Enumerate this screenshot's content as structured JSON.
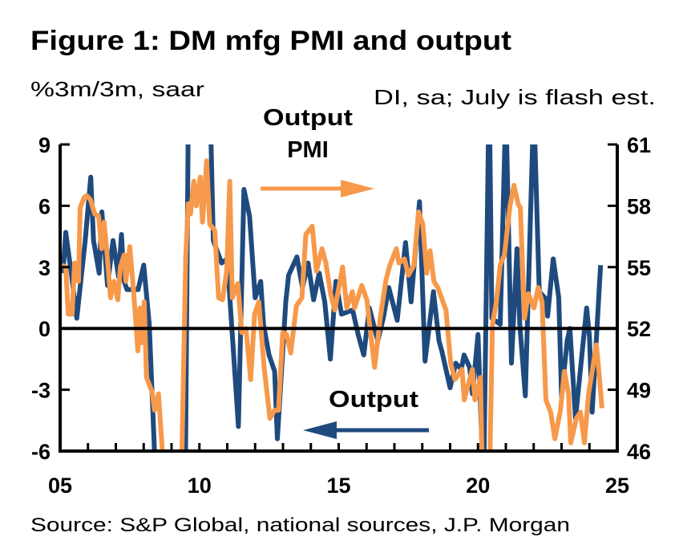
{
  "chart_data": {
    "type": "line",
    "title": "Figure 1: DM mfg PMI and output",
    "left_axis_label": "%3m/3m, saar",
    "right_axis_label": "DI, sa; July is flash est.",
    "source": "Source: S&P Global, national sources, J.P. Morgan",
    "x_ticks": [
      "05",
      "10",
      "15",
      "20",
      "25"
    ],
    "x_tick_years": [
      2005,
      2010,
      2015,
      2020,
      2025
    ],
    "xlim": [
      2005,
      2025
    ],
    "y_left": {
      "ticks": [
        9,
        6,
        3,
        0,
        -3,
        -6
      ],
      "lim": [
        -6,
        9
      ]
    },
    "y_right": {
      "ticks": [
        61,
        58,
        55,
        52,
        49,
        46
      ],
      "lim": [
        46,
        61
      ]
    },
    "grid": false,
    "annotations": {
      "pmi_line1": "Output",
      "pmi_line2": "PMI",
      "output": "Output"
    },
    "colors": {
      "output": "#1f4a7e",
      "pmi": "#f7994a"
    },
    "series": [
      {
        "name": "Output",
        "axis": "left",
        "x": [
          2005.1,
          2005.2,
          2005.4,
          2005.6,
          2005.9,
          2006.1,
          2006.2,
          2006.4,
          2006.5,
          2006.7,
          2006.9,
          2007.1,
          2007.2,
          2007.3,
          2007.4,
          2007.8,
          2008.0,
          2008.2,
          2008.4,
          2008.6,
          2009.0,
          2009.5,
          2009.6,
          2009.8,
          2010.0,
          2010.2,
          2010.4,
          2010.5,
          2010.8,
          2011.0,
          2011.4,
          2011.6,
          2011.8,
          2012.0,
          2012.2,
          2012.3,
          2012.5,
          2012.7,
          2012.8,
          2013.1,
          2013.2,
          2013.5,
          2013.7,
          2013.9,
          2014.1,
          2014.3,
          2014.5,
          2014.7,
          2014.9,
          2015.1,
          2015.5,
          2015.7,
          2015.9,
          2016.1,
          2016.4,
          2016.6,
          2016.8,
          2017.1,
          2017.4,
          2017.6,
          2017.9,
          2018.1,
          2018.4,
          2018.6,
          2018.7,
          2019.0,
          2019.2,
          2019.4,
          2019.5,
          2019.7,
          2019.8,
          2020.0,
          2020.2,
          2020.4,
          2020.5,
          2020.8,
          2021.0,
          2021.2,
          2021.4,
          2021.5,
          2021.7,
          2022.0,
          2022.2,
          2022.4,
          2022.5,
          2022.7,
          2022.9,
          2023.0,
          2023.2,
          2023.3,
          2023.5,
          2023.9,
          2024.0,
          2024.1,
          2024.4
        ],
        "values": [
          2.7,
          4.7,
          2.7,
          0.5,
          4.3,
          7.4,
          4.3,
          2.7,
          5.7,
          2.1,
          4.3,
          2.5,
          4.6,
          2.3,
          1.9,
          1.9,
          3.1,
          0.2,
          -6.5,
          -9,
          -12,
          -6.5,
          10,
          9.2,
          11,
          9.3,
          10,
          4.3,
          3.2,
          3.4,
          -4.8,
          6.8,
          5.5,
          1.5,
          2.3,
          0.2,
          -1.3,
          -2.1,
          -5.4,
          1.3,
          2.6,
          3.5,
          2.0,
          3.2,
          1.4,
          2.7,
          1.3,
          -1.5,
          2.3,
          0.7,
          0.9,
          -0.3,
          -1.3,
          1.0,
          -0.6,
          0.5,
          2.0,
          0.4,
          4.2,
          1.3,
          6.2,
          -1.6,
          1.8,
          -0.6,
          -1.1,
          -2.9,
          -1.7,
          -2.0,
          -1.3,
          -1.9,
          -3.2,
          -0.3,
          -8,
          12,
          0.5,
          0.2,
          11,
          -1.7,
          3.9,
          0.2,
          -3.3,
          11,
          1.8,
          1.5,
          0.6,
          3.4,
          1.5,
          -3.3,
          -0.6,
          0,
          -4.4,
          1.0,
          -0.4,
          -4.1,
          3.1
        ]
      },
      {
        "name": "PMI",
        "axis": "right",
        "x": [
          2005.06,
          2005.2,
          2005.29,
          2005.43,
          2005.52,
          2005.66,
          2005.72,
          2005.86,
          2005.95,
          2006.09,
          2006.24,
          2006.38,
          2006.49,
          2006.58,
          2006.67,
          2006.81,
          2006.93,
          2007.07,
          2007.16,
          2007.3,
          2007.36,
          2007.5,
          2007.64,
          2007.79,
          2007.87,
          2007.93,
          2008.02,
          2008.1,
          2008.3,
          2008.39,
          2008.53,
          2008.68,
          2009.02,
          2009.37,
          2009.51,
          2009.6,
          2009.68,
          2009.8,
          2009.89,
          2010.03,
          2010.11,
          2010.26,
          2010.37,
          2010.55,
          2010.69,
          2010.83,
          2010.98,
          2011.09,
          2011.18,
          2011.38,
          2011.52,
          2011.67,
          2011.84,
          2011.98,
          2012.13,
          2012.33,
          2012.53,
          2012.7,
          2012.84,
          2012.99,
          2013.13,
          2013.28,
          2013.48,
          2013.68,
          2013.82,
          2014.05,
          2014.2,
          2014.4,
          2014.54,
          2014.71,
          2014.86,
          2015.14,
          2015.29,
          2015.49,
          2015.57,
          2015.83,
          2016.01,
          2016.15,
          2016.29,
          2016.49,
          2016.7,
          2016.84,
          2017.07,
          2017.16,
          2017.36,
          2017.5,
          2017.7,
          2017.87,
          2018.02,
          2018.16,
          2018.28,
          2018.42,
          2018.56,
          2018.85,
          2019.02,
          2019.17,
          2019.43,
          2019.51,
          2019.66,
          2019.8,
          2019.89,
          2020.09,
          2020.14,
          2020.29,
          2020.43,
          2020.52,
          2020.66,
          2020.8,
          2020.95,
          2021.15,
          2021.29,
          2021.44,
          2021.52,
          2021.67,
          2021.81,
          2022.01,
          2022.16,
          2022.3,
          2022.44,
          2022.61,
          2022.76,
          2022.96,
          2023.1,
          2023.25,
          2023.33,
          2023.53,
          2023.68,
          2023.82,
          2023.97,
          2024.11,
          2024.25,
          2024.34,
          2024.45
        ],
        "values": [
          55.1,
          55.0,
          52.7,
          52.7,
          55.2,
          54.3,
          57.9,
          58.4,
          58.5,
          58.3,
          57.6,
          57.5,
          55.9,
          57.2,
          55.9,
          53.5,
          54.3,
          53.4,
          55.0,
          55.6,
          54.3,
          56.0,
          53.8,
          50.9,
          53.0,
          51.3,
          53.3,
          49.6,
          48.9,
          48.0,
          48.8,
          45.8,
          43.5,
          45.8,
          55.5,
          58.1,
          57.6,
          59.2,
          58.0,
          59.4,
          57.2,
          60.2,
          57.1,
          56.8,
          53.5,
          53.4,
          54.8,
          59.2,
          53.5,
          54.2,
          51.8,
          52.0,
          49.5,
          52.7,
          53.3,
          50.0,
          47.6,
          48.0,
          48.0,
          51.8,
          51.7,
          50.8,
          53.1,
          53.5,
          56.6,
          57.0,
          54.8,
          55.9,
          55.2,
          53.7,
          52.9,
          55.0,
          53.0,
          53.8,
          53.0,
          54.1,
          53.4,
          51.7,
          50.1,
          52.5,
          54.4,
          55.1,
          55.9,
          55.2,
          55.4,
          54.6,
          55.1,
          57.7,
          57.1,
          54.7,
          55.8,
          54.3,
          54.0,
          52.9,
          50.3,
          49.5,
          50.0,
          48.5,
          49.3,
          50.0,
          48.5,
          49.6,
          45.8,
          43.0,
          45.8,
          52.2,
          53.3,
          55.1,
          55.6,
          58.0,
          59.0,
          58.1,
          57.9,
          52.5,
          53.7,
          53.0,
          54.0,
          53.3,
          48.5,
          47.9,
          46.6,
          48.0,
          49.9,
          48.8,
          46.4,
          47.6,
          47.9,
          46.4,
          48.8,
          50.0,
          51.2,
          49.9,
          48.1
        ]
      }
    ]
  }
}
